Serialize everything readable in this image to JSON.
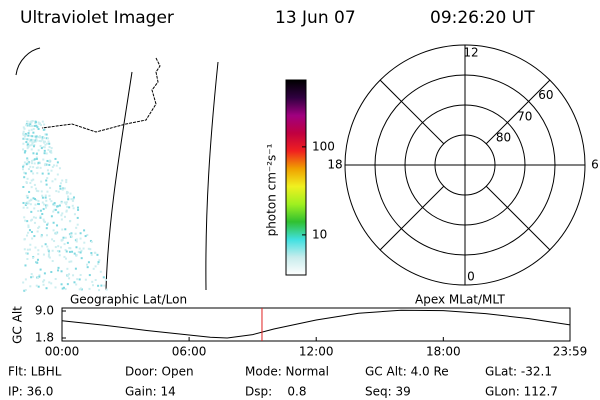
{
  "header": {
    "title": "Ultraviolet Imager",
    "date": "13 Jun 07",
    "time": "09:26:20 UT"
  },
  "map_panel": {
    "label": "Geographic Lat/Lon"
  },
  "colorbar": {
    "label": "photon cm⁻²s⁻¹",
    "log": true,
    "clim": [
      3.5,
      575
    ],
    "ticks": [
      10,
      100
    ],
    "colors": [
      "#ffffff",
      "#c8ecec",
      "#40e0e0",
      "#30c030",
      "#a0f020",
      "#f0f020",
      "#f0a000",
      "#f02020",
      "#c00040",
      "#a00080",
      "#300040",
      "#000000"
    ]
  },
  "polar": {
    "label": "Apex MLat/MLT",
    "rlim": [
      90,
      50
    ],
    "rings": [
      80,
      70,
      60
    ],
    "mlt_ticks": [
      12,
      18,
      6,
      0
    ]
  },
  "chart_data": {
    "type": "line",
    "y_label": "GC Alt",
    "x": [
      0,
      2,
      4,
      6,
      7,
      7.8,
      9,
      10,
      12,
      14,
      16,
      18,
      20,
      22,
      23.98
    ],
    "series": [
      {
        "color": "#000000",
        "values": [
          6.4,
          5.2,
          3.8,
          2.6,
          2.0,
          1.8,
          2.7,
          4.2,
          6.6,
          8.4,
          9.2,
          9.1,
          8.3,
          7.0,
          5.3
        ]
      }
    ],
    "cursor": 9.44,
    "cursor_color": "#e02020",
    "xlim": [
      0,
      23.98
    ],
    "ylim": [
      1.0,
      9.8
    ],
    "xticks": [
      {
        "value": 0,
        "label": "00:00"
      },
      {
        "value": 6,
        "label": "06:00"
      },
      {
        "value": 12,
        "label": "12:00"
      },
      {
        "value": 18,
        "label": "18:00"
      },
      {
        "value": 23.98,
        "label": "23:59"
      }
    ],
    "yticks": [
      {
        "value": 9,
        "label": "9.0"
      },
      {
        "value": 1.8,
        "label": "1.8"
      }
    ]
  },
  "footer": {
    "rows": [
      [
        "Flt: LBHL",
        "Door: Open",
        "Mode: Normal",
        "GC Alt: 4.0 Re",
        "GLat: -32.1"
      ],
      [
        "IP: 36.0",
        "Gain: 14",
        "Dsp:    0.8",
        "Seq: 39",
        "GLon: 112.7"
      ]
    ]
  }
}
